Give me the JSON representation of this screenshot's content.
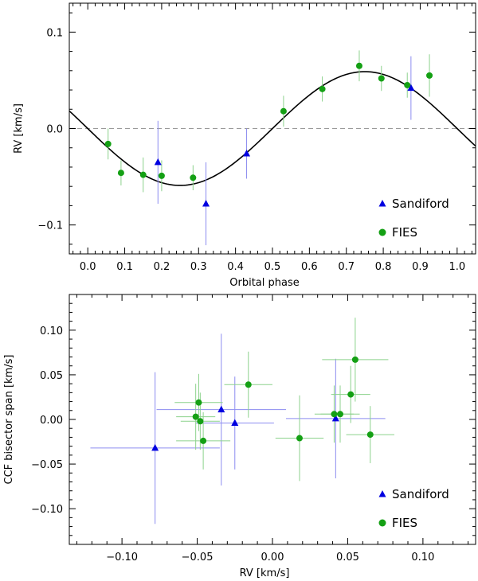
{
  "colors": {
    "sandiford": "#0000e0",
    "fies": "#14a014",
    "sandiford_err": "#8c8cf0",
    "fies_err": "#8cd28c",
    "model": "#000000",
    "zero_line": "#999999"
  },
  "chart_data": [
    {
      "type": "scatter",
      "xlabel": "Orbital phase",
      "ylabel": "RV [km/s]",
      "xlim": [
        -0.05,
        1.05
      ],
      "ylim": [
        -0.13,
        0.13
      ],
      "xticks": [
        0.0,
        0.1,
        0.2,
        0.3,
        0.4,
        0.5,
        0.6,
        0.7,
        0.8,
        0.9,
        1.0
      ],
      "xtick_labels": [
        "0.0",
        "0.1",
        "0.2",
        "0.3",
        "0.4",
        "0.5",
        "0.6",
        "0.7",
        "0.8",
        "0.9",
        "1.0"
      ],
      "yticks": [
        -0.1,
        0.0,
        0.1
      ],
      "ytick_labels": [
        "−0.1",
        "0.0",
        "0.1"
      ],
      "legend_position": "bottom-right",
      "model_curve": {
        "amplitude": 0.059,
        "phase_of_minimum": 0.25
      },
      "zero_line": true,
      "series": [
        {
          "name": "Sandiford",
          "marker": "triangle",
          "points": [
            {
              "x": 0.19,
              "y": -0.035,
              "yerr": 0.043
            },
            {
              "x": 0.32,
              "y": -0.078,
              "yerr": 0.043
            },
            {
              "x": 0.43,
              "y": -0.026,
              "yerr": 0.026
            },
            {
              "x": 0.875,
              "y": 0.042,
              "yerr": 0.033
            }
          ]
        },
        {
          "name": "FIES",
          "marker": "circle",
          "points": [
            {
              "x": 0.055,
              "y": -0.016,
              "yerr": 0.016
            },
            {
              "x": 0.09,
              "y": -0.046,
              "yerr": 0.013
            },
            {
              "x": 0.15,
              "y": -0.048,
              "yerr": 0.018
            },
            {
              "x": 0.2,
              "y": -0.049,
              "yerr": 0.016
            },
            {
              "x": 0.285,
              "y": -0.051,
              "yerr": 0.013
            },
            {
              "x": 0.53,
              "y": 0.018,
              "yerr": 0.016
            },
            {
              "x": 0.635,
              "y": 0.041,
              "yerr": 0.013
            },
            {
              "x": 0.735,
              "y": 0.065,
              "yerr": 0.016
            },
            {
              "x": 0.795,
              "y": 0.052,
              "yerr": 0.013
            },
            {
              "x": 0.865,
              "y": 0.045,
              "yerr": 0.013
            },
            {
              "x": 0.925,
              "y": 0.055,
              "yerr": 0.022
            }
          ]
        }
      ]
    },
    {
      "type": "scatter",
      "xlabel": "RV [km/s]",
      "ylabel": "CCF bisector span [km/s]",
      "xlim": [
        -0.135,
        0.135
      ],
      "ylim": [
        -0.14,
        0.14
      ],
      "xticks": [
        -0.1,
        -0.05,
        0.0,
        0.05,
        0.1
      ],
      "xtick_labels": [
        "−0.10",
        "−0.05",
        "0.00",
        "0.05",
        "0.10"
      ],
      "yticks": [
        -0.1,
        -0.05,
        0.0,
        0.05,
        0.1
      ],
      "ytick_labels": [
        "−0.10",
        "−0.05",
        "0.00",
        "0.05",
        "0.10"
      ],
      "legend_position": "bottom-right",
      "series": [
        {
          "name": "Sandiford",
          "marker": "triangle",
          "points": [
            {
              "x": -0.078,
              "y": -0.032,
              "xerr": 0.043,
              "yerr": 0.085
            },
            {
              "x": -0.034,
              "y": 0.011,
              "xerr": 0.043,
              "yerr": 0.085
            },
            {
              "x": -0.025,
              "y": -0.004,
              "xerr": 0.026,
              "yerr": 0.052
            },
            {
              "x": 0.042,
              "y": 0.001,
              "xerr": 0.033,
              "yerr": 0.067
            }
          ]
        },
        {
          "name": "FIES",
          "marker": "circle",
          "points": [
            {
              "x": -0.016,
              "y": 0.039,
              "xerr": 0.016,
              "yerr": 0.037
            },
            {
              "x": -0.051,
              "y": 0.003,
              "xerr": 0.013,
              "yerr": 0.037
            },
            {
              "x": -0.049,
              "y": 0.019,
              "xerr": 0.016,
              "yerr": 0.032
            },
            {
              "x": -0.048,
              "y": -0.002,
              "xerr": 0.013,
              "yerr": 0.032
            },
            {
              "x": -0.046,
              "y": -0.024,
              "xerr": 0.018,
              "yerr": 0.032
            },
            {
              "x": 0.018,
              "y": -0.021,
              "xerr": 0.016,
              "yerr": 0.048
            },
            {
              "x": 0.041,
              "y": 0.006,
              "xerr": 0.013,
              "yerr": 0.032
            },
            {
              "x": 0.045,
              "y": 0.006,
              "xerr": 0.013,
              "yerr": 0.032
            },
            {
              "x": 0.052,
              "y": 0.028,
              "xerr": 0.013,
              "yerr": 0.032
            },
            {
              "x": 0.055,
              "y": 0.067,
              "xerr": 0.022,
              "yerr": 0.047
            },
            {
              "x": 0.065,
              "y": -0.017,
              "xerr": 0.016,
              "yerr": 0.032
            }
          ]
        }
      ]
    }
  ]
}
